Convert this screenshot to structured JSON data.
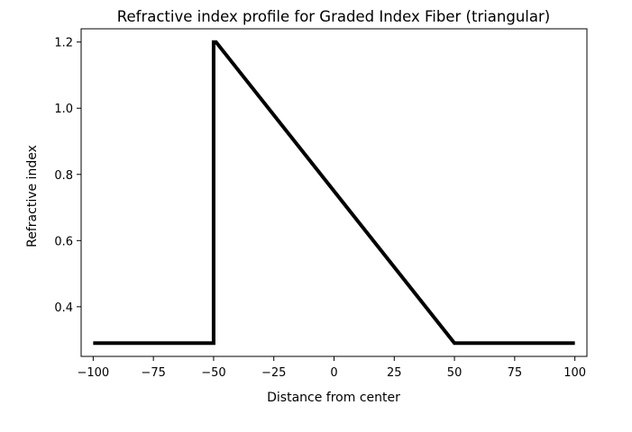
{
  "chart_data": {
    "type": "line",
    "title": "Refractive index profile for Graded Index Fiber (triangular)",
    "xlabel": "Distance from center",
    "ylabel": "Refractive index",
    "xlim": [
      -105,
      105
    ],
    "ylim": [
      0.25,
      1.24
    ],
    "xticks": [
      -100,
      -75,
      -50,
      -25,
      0,
      25,
      50,
      75,
      100
    ],
    "xtick_labels": [
      "−100",
      "−75",
      "−50",
      "−25",
      "0",
      "25",
      "50",
      "75",
      "100"
    ],
    "yticks": [
      0.4,
      0.6,
      0.8,
      1.0,
      1.2
    ],
    "ytick_labels": [
      "0.4",
      "0.6",
      "0.8",
      "1.0",
      "1.2"
    ],
    "grid": false,
    "series": [
      {
        "color": "#000000",
        "x": [
          -100,
          -50,
          -50,
          -49,
          50,
          100
        ],
        "y": [
          0.29,
          0.29,
          1.2,
          1.2,
          0.29,
          0.29
        ]
      }
    ]
  }
}
